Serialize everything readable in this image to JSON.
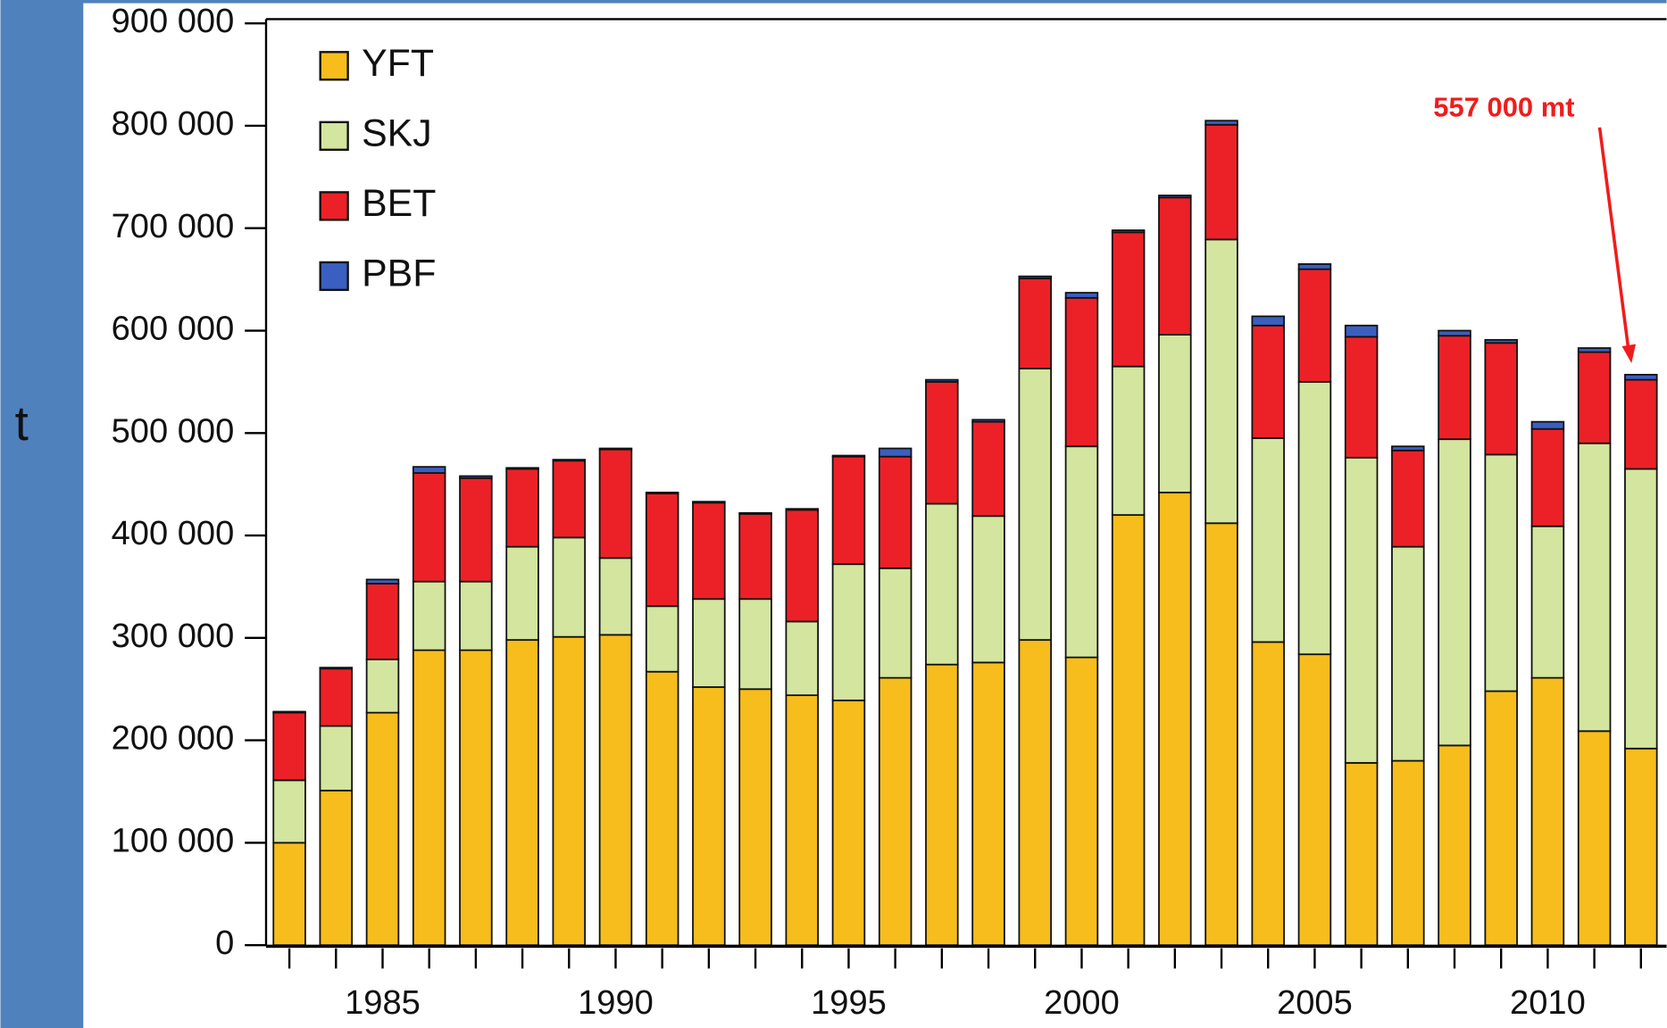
{
  "chart_data": {
    "type": "stacked_bar",
    "y_label": "t",
    "annotation": "557 000 mt",
    "categories": [
      null,
      null,
      "1985",
      null,
      null,
      null,
      null,
      "1990",
      null,
      null,
      null,
      null,
      "1995",
      null,
      null,
      null,
      null,
      "2000",
      null,
      null,
      null,
      null,
      "2005",
      null,
      null,
      null,
      null,
      "2010",
      null,
      null
    ],
    "series": [
      {
        "name": "YFT",
        "color": "#f6bd1c",
        "values": [
          100000,
          151000,
          227000,
          288000,
          288000,
          298000,
          301000,
          303000,
          267000,
          252000,
          250000,
          244000,
          239000,
          261000,
          274000,
          276000,
          298000,
          281000,
          420000,
          442000,
          412000,
          296000,
          284000,
          178000,
          180000,
          195000,
          248000,
          261000,
          209000,
          192000
        ]
      },
      {
        "name": "SKJ",
        "color": "#d3e59f",
        "values": [
          61000,
          63000,
          52000,
          67000,
          67000,
          91000,
          97000,
          75000,
          64000,
          86000,
          88000,
          72000,
          133000,
          107000,
          157000,
          143000,
          265000,
          206000,
          145000,
          154000,
          277000,
          199000,
          266000,
          298000,
          209000,
          299000,
          231000,
          148000,
          281000,
          273000
        ]
      },
      {
        "name": "BET",
        "color": "#ec2127",
        "values": [
          66000,
          56000,
          74000,
          106000,
          101000,
          76000,
          75000,
          106000,
          110000,
          94000,
          83000,
          109000,
          105000,
          109000,
          119000,
          92000,
          88000,
          145000,
          131000,
          134000,
          112000,
          110000,
          110000,
          118000,
          94000,
          101000,
          109000,
          95000,
          89000,
          87000
        ]
      },
      {
        "name": "PBF",
        "color": "#3a5fc0",
        "values": [
          1000,
          1000,
          4000,
          6000,
          2000,
          1000,
          1000,
          1000,
          1000,
          1000,
          1000,
          1000,
          1000,
          8000,
          2000,
          2000,
          2000,
          5000,
          2000,
          2000,
          4000,
          9000,
          5000,
          11000,
          4000,
          5000,
          3000,
          7000,
          4000,
          5000
        ]
      }
    ],
    "ylim": [
      0,
      900000
    ],
    "yticks": [
      0,
      {
        "value": 100000,
        "label": "100 000"
      },
      {
        "value": 200000,
        "label": "200 000"
      },
      {
        "value": 300000,
        "label": "300 000"
      },
      {
        "value": 400000,
        "label": "400 000"
      },
      {
        "value": 500000,
        "label": "500 000"
      },
      {
        "value": 600000,
        "label": "600 000"
      },
      {
        "value": 700000,
        "label": "700 000"
      },
      {
        "value": 800000,
        "label": "800 000"
      },
      {
        "value": {
          "value": 900000,
          "label": "900 000"
        }
      }
    ]
  }
}
